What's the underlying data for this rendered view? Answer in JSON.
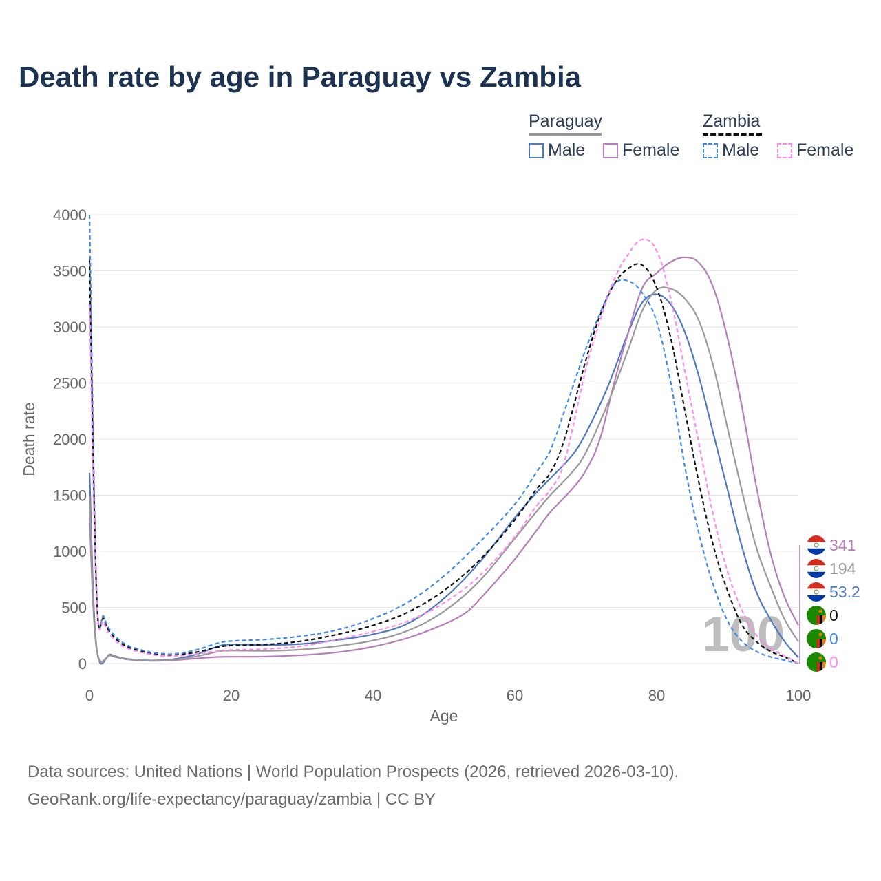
{
  "title": "Death rate by age in Paraguay vs Zambia",
  "legend": {
    "country1": "Paraguay",
    "country2": "Zambia",
    "male": "Male",
    "female": "Female",
    "colors": {
      "paraguay": "#999999",
      "zambia": "#111111",
      "pm": "#4d79bf",
      "pf": "#b77cbc",
      "zm": "#3d8ae8",
      "zf": "#ff88ee"
    }
  },
  "footer": {
    "line1": "Data sources: United Nations | World Population Prospects (2026, retrieved 2026-03-10).",
    "line2": "GeoRank.org/life-expectancy/paraguay/zambia | CC BY"
  },
  "chart_data": {
    "type": "line",
    "xlabel": "Age",
    "ylabel": "Death rate",
    "xlim": [
      0,
      100
    ],
    "ylim": [
      0,
      4000
    ],
    "xticks": [
      "0",
      "20",
      "40",
      "60",
      "80",
      "100"
    ],
    "yticks": [
      "0",
      "500",
      "1000",
      "1500",
      "2000",
      "2500",
      "3000",
      "3500",
      "4000"
    ],
    "year_watermark": "100",
    "end_labels": [
      "341",
      "194",
      "53.2",
      "0",
      "0",
      "0"
    ],
    "series": [
      {
        "name": "Paraguay Male",
        "color": "#4d79bf",
        "dashed": false,
        "points": [
          [
            0,
            1700
          ],
          [
            1,
            140
          ],
          [
            3,
            80
          ],
          [
            5,
            45
          ],
          [
            8,
            28
          ],
          [
            10,
            30
          ],
          [
            12,
            40
          ],
          [
            15,
            80
          ],
          [
            18,
            150
          ],
          [
            20,
            170
          ],
          [
            25,
            165
          ],
          [
            30,
            175
          ],
          [
            35,
            210
          ],
          [
            40,
            260
          ],
          [
            45,
            360
          ],
          [
            50,
            580
          ],
          [
            55,
            900
          ],
          [
            60,
            1300
          ],
          [
            63,
            1520
          ],
          [
            65,
            1650
          ],
          [
            68,
            1850
          ],
          [
            70,
            2050
          ],
          [
            73,
            2450
          ],
          [
            76,
            2950
          ],
          [
            78,
            3220
          ],
          [
            80,
            3290
          ],
          [
            82,
            3200
          ],
          [
            84,
            2950
          ],
          [
            86,
            2550
          ],
          [
            88,
            2050
          ],
          [
            90,
            1550
          ],
          [
            92,
            1050
          ],
          [
            94,
            650
          ],
          [
            96,
            400
          ],
          [
            98,
            200
          ],
          [
            100,
            53
          ]
        ]
      },
      {
        "name": "Paraguay Female",
        "color": "#b77cbc",
        "dashed": false,
        "points": [
          [
            0,
            1300
          ],
          [
            1,
            130
          ],
          [
            3,
            70
          ],
          [
            5,
            40
          ],
          [
            8,
            25
          ],
          [
            10,
            25
          ],
          [
            12,
            30
          ],
          [
            15,
            45
          ],
          [
            18,
            58
          ],
          [
            20,
            60
          ],
          [
            25,
            62
          ],
          [
            30,
            75
          ],
          [
            35,
            100
          ],
          [
            40,
            150
          ],
          [
            45,
            230
          ],
          [
            50,
            350
          ],
          [
            53,
            450
          ],
          [
            55,
            570
          ],
          [
            58,
            780
          ],
          [
            60,
            930
          ],
          [
            63,
            1180
          ],
          [
            65,
            1350
          ],
          [
            68,
            1550
          ],
          [
            70,
            1720
          ],
          [
            72,
            2000
          ],
          [
            74,
            2500
          ],
          [
            76,
            2950
          ],
          [
            78,
            3350
          ],
          [
            80,
            3480
          ],
          [
            82,
            3580
          ],
          [
            84,
            3620
          ],
          [
            86,
            3570
          ],
          [
            88,
            3350
          ],
          [
            90,
            2900
          ],
          [
            92,
            2300
          ],
          [
            94,
            1600
          ],
          [
            96,
            1000
          ],
          [
            98,
            600
          ],
          [
            100,
            341
          ]
        ]
      },
      {
        "name": "Paraguay Total",
        "color": "#999999",
        "dashed": false,
        "points": [
          [
            0,
            1500
          ],
          [
            1,
            135
          ],
          [
            3,
            75
          ],
          [
            5,
            42
          ],
          [
            8,
            26
          ],
          [
            10,
            28
          ],
          [
            12,
            35
          ],
          [
            15,
            62
          ],
          [
            18,
            104
          ],
          [
            20,
            115
          ],
          [
            25,
            113
          ],
          [
            30,
            125
          ],
          [
            35,
            155
          ],
          [
            40,
            205
          ],
          [
            45,
            295
          ],
          [
            50,
            465
          ],
          [
            55,
            735
          ],
          [
            60,
            1115
          ],
          [
            63,
            1350
          ],
          [
            65,
            1500
          ],
          [
            68,
            1700
          ],
          [
            70,
            1880
          ],
          [
            73,
            2300
          ],
          [
            76,
            2800
          ],
          [
            78,
            3150
          ],
          [
            80,
            3330
          ],
          [
            82,
            3340
          ],
          [
            84,
            3250
          ],
          [
            86,
            3050
          ],
          [
            88,
            2650
          ],
          [
            90,
            2100
          ],
          [
            92,
            1550
          ],
          [
            94,
            1050
          ],
          [
            96,
            700
          ],
          [
            98,
            400
          ],
          [
            100,
            194
          ]
        ]
      },
      {
        "name": "Zambia Total",
        "color": "#111111",
        "dashed": true,
        "points": [
          [
            0,
            3600
          ],
          [
            1,
            620
          ],
          [
            2,
            400
          ],
          [
            3,
            270
          ],
          [
            5,
            160
          ],
          [
            8,
            100
          ],
          [
            10,
            80
          ],
          [
            12,
            78
          ],
          [
            15,
            100
          ],
          [
            18,
            145
          ],
          [
            20,
            160
          ],
          [
            25,
            170
          ],
          [
            30,
            200
          ],
          [
            35,
            260
          ],
          [
            40,
            340
          ],
          [
            45,
            460
          ],
          [
            50,
            650
          ],
          [
            55,
            920
          ],
          [
            60,
            1280
          ],
          [
            63,
            1550
          ],
          [
            65,
            1700
          ],
          [
            67,
            2000
          ],
          [
            70,
            2700
          ],
          [
            72,
            3100
          ],
          [
            74,
            3380
          ],
          [
            76,
            3520
          ],
          [
            78,
            3550
          ],
          [
            80,
            3350
          ],
          [
            82,
            2900
          ],
          [
            84,
            2250
          ],
          [
            86,
            1600
          ],
          [
            88,
            1050
          ],
          [
            90,
            650
          ],
          [
            92,
            350
          ],
          [
            94,
            200
          ],
          [
            96,
            110
          ],
          [
            98,
            60
          ],
          [
            100,
            0
          ]
        ]
      },
      {
        "name": "Zambia Male",
        "color": "#3d8ae8",
        "dashed": true,
        "points": [
          [
            0,
            4000
          ],
          [
            1,
            650
          ],
          [
            2,
            420
          ],
          [
            3,
            290
          ],
          [
            5,
            175
          ],
          [
            8,
            110
          ],
          [
            10,
            90
          ],
          [
            12,
            85
          ],
          [
            15,
            120
          ],
          [
            18,
            180
          ],
          [
            20,
            200
          ],
          [
            25,
            215
          ],
          [
            30,
            245
          ],
          [
            35,
            300
          ],
          [
            40,
            400
          ],
          [
            45,
            550
          ],
          [
            50,
            780
          ],
          [
            55,
            1080
          ],
          [
            60,
            1420
          ],
          [
            63,
            1700
          ],
          [
            65,
            1900
          ],
          [
            67,
            2250
          ],
          [
            70,
            2800
          ],
          [
            72,
            3120
          ],
          [
            74,
            3380
          ],
          [
            76,
            3410
          ],
          [
            78,
            3300
          ],
          [
            80,
            3050
          ],
          [
            82,
            2500
          ],
          [
            84,
            1750
          ],
          [
            86,
            1150
          ],
          [
            88,
            700
          ],
          [
            90,
            380
          ],
          [
            92,
            200
          ],
          [
            94,
            110
          ],
          [
            96,
            60
          ],
          [
            98,
            30
          ],
          [
            100,
            0
          ]
        ]
      },
      {
        "name": "Zambia Female",
        "color": "#ff88ee",
        "dashed": true,
        "points": [
          [
            0,
            3200
          ],
          [
            1,
            580
          ],
          [
            2,
            370
          ],
          [
            3,
            250
          ],
          [
            5,
            145
          ],
          [
            8,
            90
          ],
          [
            10,
            70
          ],
          [
            12,
            65
          ],
          [
            15,
            85
          ],
          [
            18,
            110
          ],
          [
            20,
            120
          ],
          [
            25,
            130
          ],
          [
            30,
            155
          ],
          [
            35,
            215
          ],
          [
            40,
            285
          ],
          [
            45,
            380
          ],
          [
            50,
            540
          ],
          [
            55,
            780
          ],
          [
            60,
            1130
          ],
          [
            63,
            1400
          ],
          [
            65,
            1550
          ],
          [
            67,
            1800
          ],
          [
            70,
            2620
          ],
          [
            72,
            3050
          ],
          [
            74,
            3420
          ],
          [
            76,
            3650
          ],
          [
            78,
            3780
          ],
          [
            80,
            3680
          ],
          [
            82,
            3250
          ],
          [
            84,
            2600
          ],
          [
            86,
            1950
          ],
          [
            88,
            1320
          ],
          [
            90,
            820
          ],
          [
            92,
            480
          ],
          [
            94,
            260
          ],
          [
            96,
            140
          ],
          [
            98,
            70
          ],
          [
            100,
            0
          ]
        ]
      }
    ]
  }
}
